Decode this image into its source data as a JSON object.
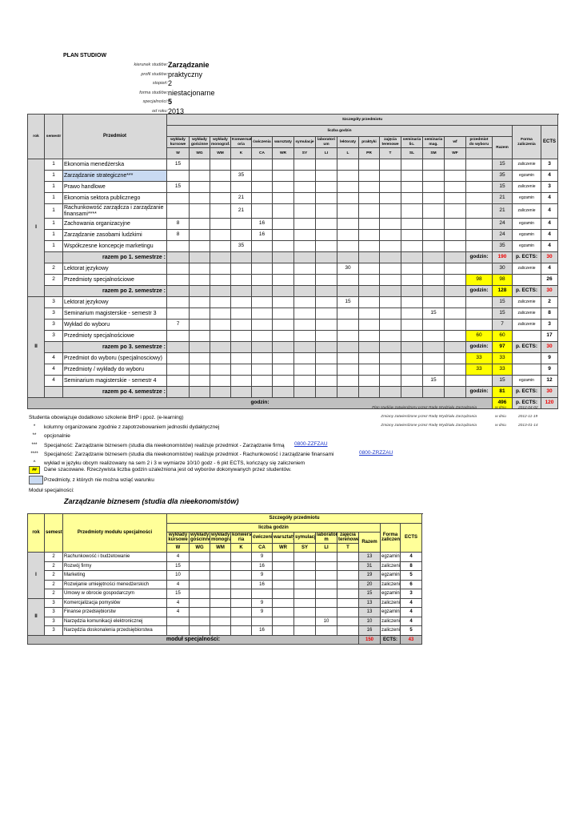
{
  "header": {
    "title": "PLAN STUDIOW",
    "fields": [
      {
        "label": "kierunek studiów:",
        "value": "Zarządzanie",
        "bold": true
      },
      {
        "label": "profil studiów:",
        "value": "praktyczny"
      },
      {
        "label": "stopień:",
        "value": "2"
      },
      {
        "label": "forma studiów:",
        "value": "niestacjonarne"
      },
      {
        "label": "specjalności:",
        "value": "5",
        "bold": true
      },
      {
        "label": "od roku:",
        "value": "2013"
      }
    ]
  },
  "main": {
    "headers": {
      "rok": "rok",
      "semestr": "semestr",
      "przedmiot": "Przedmiot",
      "szczegoly": "Szczegóły przedmiotu",
      "liczba": "liczba godzin",
      "razem": "Razem",
      "forma": "Forma zaliczenia",
      "ects": "ECTS"
    },
    "columns": [
      {
        "label": "wykłady kursowe",
        "code": "W"
      },
      {
        "label": "wykłady gościnne",
        "code": "WG"
      },
      {
        "label": "wykłady monograf.",
        "code": "WM"
      },
      {
        "label": "Konwersat oria",
        "code": "K"
      },
      {
        "label": "ćwiczenia",
        "code": "CA"
      },
      {
        "label": "warsztaty",
        "code": "WR"
      },
      {
        "label": "symulacje",
        "code": "SY"
      },
      {
        "label": "laboratori um",
        "code": "LI"
      },
      {
        "label": "lektoraty",
        "code": "L"
      },
      {
        "label": "praktyki",
        "code": "PR"
      },
      {
        "label": "zajęcia terenowe",
        "code": "T"
      },
      {
        "label": "seminaria lic.",
        "code": "SL"
      },
      {
        "label": "seminaria mag.",
        "code": "SM"
      },
      {
        "label": "wf",
        "code": "WF"
      },
      {
        "label": "przedmiot do wyboru",
        "code": ""
      }
    ],
    "years": [
      {
        "rok": "I",
        "rows": [
          {
            "sem": "1",
            "name": "Ekonomia menedżerska",
            "h": {
              "0": "15"
            },
            "razem": "15",
            "forma": "zaliczenie",
            "ects": "3"
          },
          {
            "sem": "1",
            "name": "Zarządzanie strategiczne***",
            "h": {
              "3": "35"
            },
            "razem": "35",
            "forma": "egzamin",
            "ects": "4",
            "selected": true
          },
          {
            "sem": "1",
            "name": "Prawo handlowe",
            "h": {
              "0": "15"
            },
            "razem": "15",
            "forma": "zaliczenie",
            "ects": "3"
          },
          {
            "sem": "1",
            "name": "Ekonomia sektora publicznego",
            "h": {
              "3": "21"
            },
            "razem": "21",
            "forma": "egzamin",
            "ects": "4"
          },
          {
            "sem": "1",
            "name": "Rachunkowość zarządcza i zarządzanie finansami****",
            "h": {
              "3": "21"
            },
            "razem": "21",
            "forma": "zaliczenie",
            "ects": "4",
            "tall": true
          },
          {
            "sem": "1",
            "name": "Zachowania organizacyjne",
            "h": {
              "0": "8",
              "4": "16"
            },
            "razem": "24",
            "forma": "egzamin",
            "ects": "4"
          },
          {
            "sem": "1",
            "name": "Zarządzanie zasobami ludzkimi",
            "h": {
              "0": "8",
              "4": "16"
            },
            "razem": "24",
            "forma": "egzamin",
            "ects": "4"
          },
          {
            "sem": "1",
            "name": "Współczesne koncepcje marketingu",
            "h": {
              "3": "35"
            },
            "razem": "35",
            "forma": "egzamin",
            "ects": "4"
          },
          {
            "summary": true,
            "label": "razem po 1. semestrze :",
            "godzin": "godzin:",
            "razem": "190",
            "razemRed": true,
            "pects": "p. ECTS:",
            "ects": "30"
          },
          {
            "sem": "2",
            "name": "Lektorat językowy",
            "h": {
              "8": "30"
            },
            "razem": "30",
            "forma": "zaliczenie",
            "ects": "4"
          },
          {
            "sem": "2",
            "name": "Przedmioty specjalnościowe",
            "h": {
              "14": "98"
            },
            "razem": "98",
            "forma": "",
            "ects": "26",
            "yellow": true
          },
          {
            "summary": true,
            "label": "razem po 2. semestrze :",
            "godzin": "godzin:",
            "razem": "128",
            "pects": "p. ECTS:",
            "ects": "30"
          }
        ]
      },
      {
        "rok": "II",
        "rows": [
          {
            "sem": "3",
            "name": "Lektorat językowy",
            "h": {
              "8": "15"
            },
            "razem": "15",
            "forma": "zaliczenie",
            "ects": "2"
          },
          {
            "sem": "3",
            "name": "Seminarium magisterskie - semestr 3",
            "h": {
              "12": "15"
            },
            "razem": "15",
            "forma": "zaliczenie",
            "ects": "8"
          },
          {
            "sem": "3",
            "name": "Wykład do wyboru",
            "h": {
              "0": "7"
            },
            "razem": "7",
            "forma": "zaliczenie",
            "ects": "3"
          },
          {
            "sem": "3",
            "name": "Przedmioty specjalnościowe",
            "h": {
              "14": "60"
            },
            "razem": "60",
            "forma": "",
            "ects": "17",
            "yellow": true
          },
          {
            "summary": true,
            "label": "razem po 3. semestrze :",
            "godzin": "godzin:",
            "razem": "97",
            "pects": "p. ECTS:",
            "ects": "30"
          },
          {
            "sem": "4",
            "name": "Przedmiot do wyboru (specjalnosciowy)",
            "h": {
              "14": "33"
            },
            "razem": "33",
            "forma": "",
            "ects": "9",
            "yellow": true
          },
          {
            "sem": "4",
            "name": "Przedmioty / wykłady do wyboru",
            "h": {
              "14": "33"
            },
            "razem": "33",
            "forma": "",
            "ects": "9",
            "yellow": true
          },
          {
            "sem": "4",
            "name": "Seminarium magisterskie - semestr 4",
            "h": {
              "12": "15"
            },
            "razem": "15",
            "forma": "egzamin",
            "ects": "12"
          },
          {
            "summary": true,
            "label": "razem po 4. semestrze :",
            "godzin": "godzin:",
            "razem": "81",
            "pects": "p. ECTS:",
            "ects": "30"
          }
        ]
      }
    ],
    "total": {
      "godzin": "godzin:",
      "razem": "496",
      "pects": "p. ECTS:",
      "ects": "120"
    }
  },
  "approvals": [
    {
      "text": "Plan studiów zatwierdzony przez Radę Wydziału Zarządzania",
      "wdniu": "w dniu",
      "date": "2012-04-02"
    },
    {
      "text": "Zmiany zatwierdzone przez Radę Wydziału Zarządzania",
      "wdniu": "w dniu",
      "date": "2012-11-19"
    },
    {
      "text": "Zmiany zatwierdzone przez Radę Wydziału Zarządzania",
      "wdniu": "w dniu",
      "date": "2013-01-14"
    }
  ],
  "notes": {
    "bhp": "Studenta obowiązuje dodatkowo szkolenie BHP i ppoż. (e-learning)",
    "items": [
      {
        "mark": "*",
        "text": "kolumny organizowane zgodnie z zapotrzebowaniem jednostki dydaktycznej"
      },
      {
        "mark": "**",
        "text": "opcjonalnie"
      },
      {
        "mark": "***",
        "text": "Specjalność: Zarządzanie biznesem (studia dla nieekonomistów) realizuje przedmiot - Zarządzanie firmą",
        "link": "0800-ZZFZAU"
      },
      {
        "mark": "****",
        "text": "Specjalność: Zarządzanie biznesem (studia dla nieekonomistów) realizuje przedmiot - Rachunkowość i zarządzanie finansami",
        "link": "0800-ZRZZAU"
      },
      {
        "mark": "^",
        "text": "wykład w języku obcym realizowany na sem 2 i 3 w wymiarze 10/10 godz - 6 pkt ECTS, kończący się zaliczeniem"
      }
    ],
    "legend_yellow_sample": "##",
    "legend_yellow": "Dane szacowane. Rzeczywista liczba godzin uzależniona jest od wyborów dokonywanych przez studentów.",
    "legend_blue": "Przedmioty, z których nie można wziąć warunku",
    "modul_label": "Moduł specjalności:"
  },
  "colors": {
    "gray": "#d9d9d9",
    "yellow": "#ffff00",
    "blue": "#c9daf2",
    "red": "#ee0000",
    "module_header": "#ffff99",
    "link": "#1a35c9"
  },
  "module": {
    "title": "Zarządzanie biznesem (studia dla nieekonomistów)",
    "headers": {
      "rok": "rok",
      "semestr": "semestr",
      "przedmiot": "Przedmioty modułu specjalności",
      "szczegoly": "Szczegóły przedmiotu",
      "liczba": "liczba godzin",
      "razem": "Razem",
      "forma": "Forma zaliczenia",
      "ects": "ECTS"
    },
    "columns": [
      {
        "label": "wykłady kursowe",
        "code": "W"
      },
      {
        "label": "wykłady gościnne",
        "code": "WG"
      },
      {
        "label": "wykłady monograf.",
        "code": "WM"
      },
      {
        "label": "konwersato ria",
        "code": "K"
      },
      {
        "label": "ćwiczenia",
        "code": "CA"
      },
      {
        "label": "warsztaty",
        "code": "WR"
      },
      {
        "label": "symulacje",
        "code": "SY"
      },
      {
        "label": "laboratoriu m",
        "code": "LI"
      },
      {
        "label": "zajęcia terenowe",
        "code": "T"
      }
    ],
    "years": [
      {
        "rok": "I",
        "rows": [
          {
            "sem": "2",
            "name": "Rachunkowość i budżetowanie",
            "h": {
              "0": "4",
              "4": "9"
            },
            "razem": "13",
            "forma": "egzamin",
            "ects": "4"
          },
          {
            "sem": "2",
            "name": "Rozwój firmy",
            "h": {
              "0": "15",
              "4": "16"
            },
            "razem": "31",
            "forma": "zaliczenie",
            "ects": "8"
          },
          {
            "sem": "2",
            "name": "Marketing",
            "h": {
              "0": "10",
              "4": "9"
            },
            "razem": "19",
            "forma": "egzamin",
            "ects": "5"
          },
          {
            "sem": "2",
            "name": "Rozwijanie umiejętności menedżerskich",
            "h": {
              "0": "4",
              "4": "16"
            },
            "razem": "20",
            "forma": "zaliczenie",
            "ects": "6"
          },
          {
            "sem": "2",
            "name": "Umowy w obrocie gospodarczym",
            "h": {
              "0": "15"
            },
            "razem": "15",
            "forma": "egzamin",
            "ects": "3"
          }
        ]
      },
      {
        "rok": "II",
        "rows": [
          {
            "sem": "3",
            "name": "Komercjalizacja pomysłów",
            "h": {
              "0": "4",
              "4": "9"
            },
            "razem": "13",
            "forma": "zaliczenie",
            "ects": "4"
          },
          {
            "sem": "3",
            "name": "Finanse przedsiębiorstw",
            "h": {
              "0": "4",
              "4": "9"
            },
            "razem": "13",
            "forma": "egzamin",
            "ects": "4"
          },
          {
            "sem": "3",
            "name": "Narzędzia komunikacji elektronicznej",
            "h": {
              "7": "10"
            },
            "razem": "10",
            "forma": "zaliczenie",
            "ects": "4"
          },
          {
            "sem": "3",
            "name": "Narzędzia doskonalenia przedsiębiorstwa",
            "h": {
              "4": "16"
            },
            "razem": "16",
            "forma": "zaliczenie",
            "ects": "5"
          }
        ]
      }
    ],
    "total": {
      "label": "moduł specjalności:",
      "razem": "150",
      "ects_label": "ECTS:",
      "ects": "43"
    }
  }
}
